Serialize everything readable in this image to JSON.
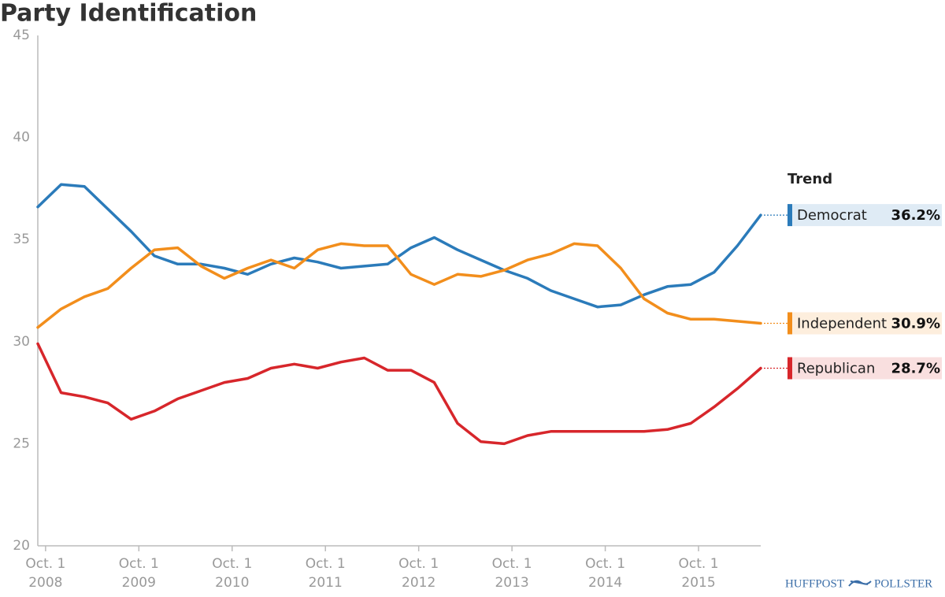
{
  "chart_data": {
    "type": "line",
    "title": "Party Identification",
    "x": [
      "2008-09-01",
      "2008-12-01",
      "2009-03-01",
      "2009-06-01",
      "2009-09-01",
      "2009-12-01",
      "2010-03-01",
      "2010-06-01",
      "2010-09-01",
      "2010-12-01",
      "2011-03-01",
      "2011-06-01",
      "2011-09-01",
      "2011-12-01",
      "2012-03-01",
      "2012-06-01",
      "2012-09-01",
      "2012-12-01",
      "2013-03-01",
      "2013-06-01",
      "2013-09-01",
      "2013-12-01",
      "2014-03-01",
      "2014-06-01",
      "2014-09-01",
      "2014-12-01",
      "2015-03-01",
      "2015-06-01",
      "2015-09-01",
      "2015-12-01",
      "2016-03-01",
      "2016-06-01"
    ],
    "series": [
      {
        "name": "Democrat",
        "color": "#2b7bba",
        "trend_label": "36.2%",
        "values": [
          36.6,
          37.7,
          37.6,
          36.5,
          35.4,
          34.2,
          33.8,
          33.8,
          33.6,
          33.3,
          33.8,
          34.1,
          33.9,
          33.6,
          33.7,
          33.8,
          34.6,
          35.1,
          34.5,
          34.0,
          33.5,
          33.1,
          32.5,
          32.1,
          31.7,
          31.8,
          32.3,
          32.7,
          32.8,
          33.4,
          34.7,
          36.2
        ]
      },
      {
        "name": "Independent",
        "color": "#f28e1c",
        "trend_label": "30.9%",
        "values": [
          30.7,
          31.6,
          32.2,
          32.6,
          33.6,
          34.5,
          34.6,
          33.7,
          33.1,
          33.6,
          34.0,
          33.6,
          34.5,
          34.8,
          34.7,
          34.7,
          33.3,
          32.8,
          33.3,
          33.2,
          33.5,
          34.0,
          34.3,
          34.8,
          34.7,
          33.6,
          32.1,
          31.4,
          31.1,
          31.1,
          31.0,
          30.9
        ]
      },
      {
        "name": "Republican",
        "color": "#d7262b",
        "trend_label": "28.7%",
        "values": [
          29.9,
          27.5,
          27.3,
          27.0,
          26.2,
          26.6,
          27.2,
          27.6,
          28.0,
          28.2,
          28.7,
          28.9,
          28.7,
          29.0,
          29.2,
          28.6,
          28.6,
          28.0,
          26.0,
          25.1,
          25.0,
          25.4,
          25.6,
          25.6,
          25.6,
          25.6,
          25.6,
          25.7,
          26.0,
          26.8,
          27.7,
          28.7
        ]
      }
    ],
    "xlim": [
      "2008-09-01",
      "2016-06-01"
    ],
    "xticks": [
      {
        "value": "2008-10-01",
        "label": "Oct. 1\n2008"
      },
      {
        "value": "2009-10-01",
        "label": "Oct. 1\n2009"
      },
      {
        "value": "2010-10-01",
        "label": "Oct. 1\n2010"
      },
      {
        "value": "2011-10-01",
        "label": "Oct. 1\n2011"
      },
      {
        "value": "2012-10-01",
        "label": "Oct. 1\n2012"
      },
      {
        "value": "2013-10-01",
        "label": "Oct. 1\n2013"
      },
      {
        "value": "2014-10-01",
        "label": "Oct. 1\n2014"
      },
      {
        "value": "2015-10-01",
        "label": "Oct. 1\n2015"
      }
    ],
    "ylim": [
      20,
      45
    ],
    "yticks": [
      20,
      25,
      30,
      35,
      40,
      45
    ],
    "grid": false,
    "legend_title": "Trend",
    "logo": [
      "HUFFPOST",
      "POLLSTER"
    ]
  }
}
